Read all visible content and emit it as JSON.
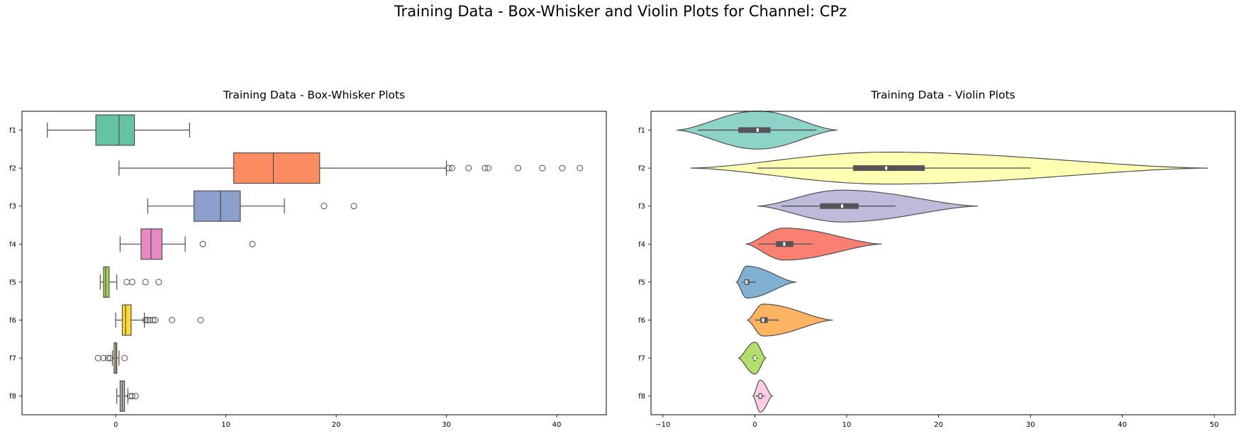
{
  "figure": {
    "suptitle": "Training Data - Box-Whisker and Violin Plots for Channel: CPz"
  },
  "chart_data": [
    {
      "type": "boxplot",
      "orientation": "horizontal",
      "title": "Training Data - Box-Whisker Plots",
      "xlabel": "",
      "ylabel": "",
      "xlim": [
        -8.5,
        44.5
      ],
      "xticks": [
        0,
        10,
        20,
        30,
        40
      ],
      "categories": [
        "f1",
        "f2",
        "f3",
        "f4",
        "f5",
        "f6",
        "f7",
        "f8"
      ],
      "colors": [
        "#66c2a5",
        "#fc8d62",
        "#8da0cb",
        "#e78ac3",
        "#a6d854",
        "#ffd92f",
        "#e5c494",
        "#b3b3b3"
      ],
      "series": [
        {
          "category": "f1",
          "whisker_low": -6.2,
          "q1": -1.8,
          "median": 0.3,
          "q3": 1.7,
          "whisker_high": 6.7,
          "outliers": []
        },
        {
          "category": "f2",
          "whisker_low": 0.3,
          "q1": 10.7,
          "median": 14.3,
          "q3": 18.5,
          "whisker_high": 30.0,
          "outliers": [
            30.2,
            30.5,
            32.0,
            33.5,
            33.8,
            36.5,
            38.7,
            40.5,
            42.1
          ]
        },
        {
          "category": "f3",
          "whisker_low": 2.9,
          "q1": 7.1,
          "median": 9.5,
          "q3": 11.3,
          "whisker_high": 15.3,
          "outliers": [
            18.9,
            21.6
          ]
        },
        {
          "category": "f4",
          "whisker_low": 0.4,
          "q1": 2.3,
          "median": 3.2,
          "q3": 4.2,
          "whisker_high": 6.3,
          "outliers": [
            7.9,
            12.4
          ]
        },
        {
          "category": "f5",
          "whisker_low": -1.4,
          "q1": -1.1,
          "median": -0.9,
          "q3": -0.6,
          "whisker_high": 0.1,
          "outliers": [
            1.0,
            1.5,
            2.7,
            3.9
          ]
        },
        {
          "category": "f6",
          "whisker_low": 0.0,
          "q1": 0.6,
          "median": 0.9,
          "q3": 1.4,
          "whisker_high": 2.6,
          "outliers": [
            2.7,
            2.9,
            3.1,
            3.4,
            3.6,
            5.1,
            7.7
          ]
        },
        {
          "category": "f7",
          "whisker_low": -0.3,
          "q1": -0.15,
          "median": 0.0,
          "q3": 0.1,
          "whisker_high": 0.3,
          "outliers": [
            -1.6,
            -1.1,
            -0.7,
            -0.5,
            0.8
          ]
        },
        {
          "category": "f8",
          "whisker_low": 0.1,
          "q1": 0.4,
          "median": 0.6,
          "q3": 0.8,
          "whisker_high": 1.1,
          "outliers": [
            1.3,
            1.5,
            1.8
          ]
        }
      ]
    },
    {
      "type": "violin",
      "orientation": "horizontal",
      "title": "Training Data - Violin Plots",
      "xlabel": "",
      "ylabel": "",
      "xlim": [
        -11.3,
        52.3
      ],
      "xticks": [
        -10,
        0,
        10,
        20,
        30,
        40,
        50
      ],
      "categories": [
        "f1",
        "f2",
        "f3",
        "f4",
        "f5",
        "f6",
        "f7",
        "f8"
      ],
      "colors": [
        "#8dd3c7",
        "#ffffb3",
        "#bebada",
        "#fb8072",
        "#80b1d3",
        "#fdb462",
        "#b3de69",
        "#fccde5"
      ],
      "series": [
        {
          "category": "f1",
          "min": -8.5,
          "max": 9.0,
          "mode": 0.3,
          "halfwidth_max": 0.5,
          "whisker_low": -6.2,
          "q1": -1.8,
          "median": 0.3,
          "q3": 1.7,
          "whisker_high": 6.7
        },
        {
          "category": "f2",
          "min": -7.0,
          "max": 49.3,
          "mode": 14.3,
          "halfwidth_max": 0.42,
          "whisker_low": 0.3,
          "q1": 10.7,
          "median": 14.3,
          "q3": 18.5,
          "whisker_high": 30.0
        },
        {
          "category": "f3",
          "min": 0.3,
          "max": 24.3,
          "mode": 9.5,
          "halfwidth_max": 0.42,
          "whisker_low": 2.9,
          "q1": 7.1,
          "median": 9.5,
          "q3": 11.3,
          "whisker_high": 15.3
        },
        {
          "category": "f4",
          "min": -1.0,
          "max": 13.8,
          "mode": 3.2,
          "halfwidth_max": 0.42,
          "whisker_low": 0.4,
          "q1": 2.3,
          "median": 3.2,
          "q3": 4.2,
          "whisker_high": 6.3
        },
        {
          "category": "f5",
          "min": -2.0,
          "max": 4.5,
          "mode": -0.9,
          "halfwidth_max": 0.42,
          "whisker_low": -1.4,
          "q1": -1.1,
          "median": -0.9,
          "q3": -0.6,
          "whisker_high": 0.1
        },
        {
          "category": "f6",
          "min": -0.8,
          "max": 8.5,
          "mode": 0.9,
          "halfwidth_max": 0.42,
          "whisker_low": 0.0,
          "q1": 0.6,
          "median": 0.9,
          "q3": 1.4,
          "whisker_high": 2.6
        },
        {
          "category": "f7",
          "min": -1.8,
          "max": 1.2,
          "mode": 0.0,
          "halfwidth_max": 0.42,
          "whisker_low": -0.3,
          "q1": -0.15,
          "median": 0.0,
          "q3": 0.1,
          "whisker_high": 0.3
        },
        {
          "category": "f8",
          "min": -0.2,
          "max": 1.9,
          "mode": 0.6,
          "halfwidth_max": 0.42,
          "whisker_low": 0.1,
          "q1": 0.4,
          "median": 0.6,
          "q3": 0.8,
          "whisker_high": 1.1
        }
      ]
    }
  ]
}
